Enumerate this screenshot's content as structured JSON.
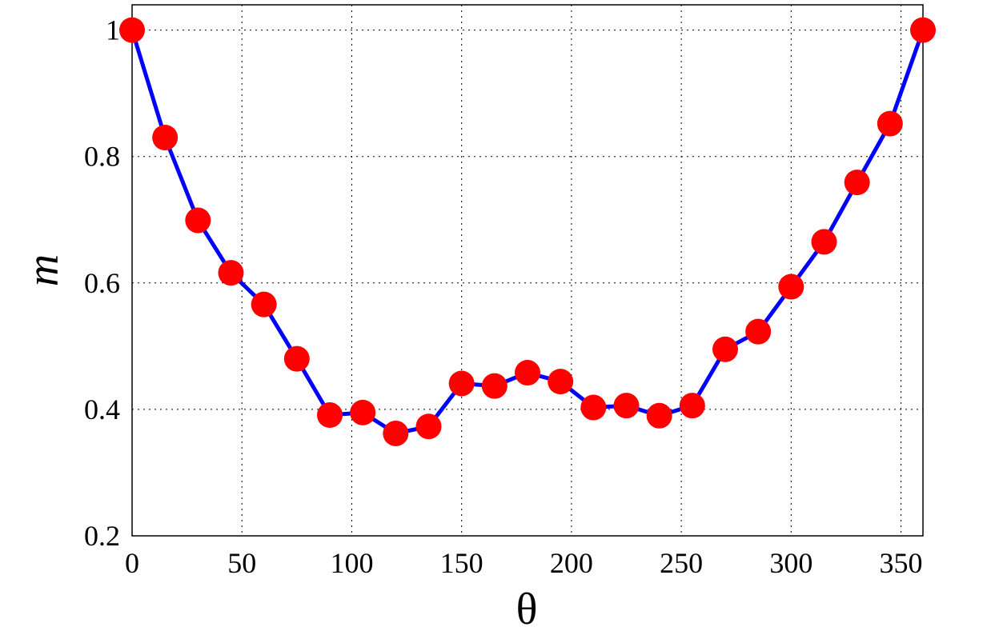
{
  "chart_data": {
    "type": "line",
    "x_label": "θ",
    "y_label": "m",
    "x": [
      0,
      15,
      30,
      45,
      60,
      75,
      90,
      105,
      120,
      135,
      150,
      165,
      180,
      195,
      210,
      225,
      240,
      255,
      270,
      285,
      300,
      315,
      330,
      345,
      360
    ],
    "values": [
      1,
      0.83,
      0.699,
      0.616,
      0.566,
      0.48,
      0.391,
      0.395,
      0.362,
      0.373,
      0.441,
      0.437,
      0.458,
      0.444,
      0.403,
      0.406,
      0.39,
      0.406,
      0.495,
      0.523,
      0.594,
      0.665,
      0.759,
      0.852,
      1
    ],
    "color": "#0000ff",
    "marker_color": "#ff0000",
    "xlim": [
      0,
      360
    ],
    "xticks": [
      0,
      50,
      100,
      150,
      200,
      250,
      300,
      350
    ],
    "ylim": [
      0.2,
      1.04
    ],
    "yticks": [
      0.2,
      0.4,
      0.6,
      0.8,
      1
    ],
    "grid": true
  }
}
